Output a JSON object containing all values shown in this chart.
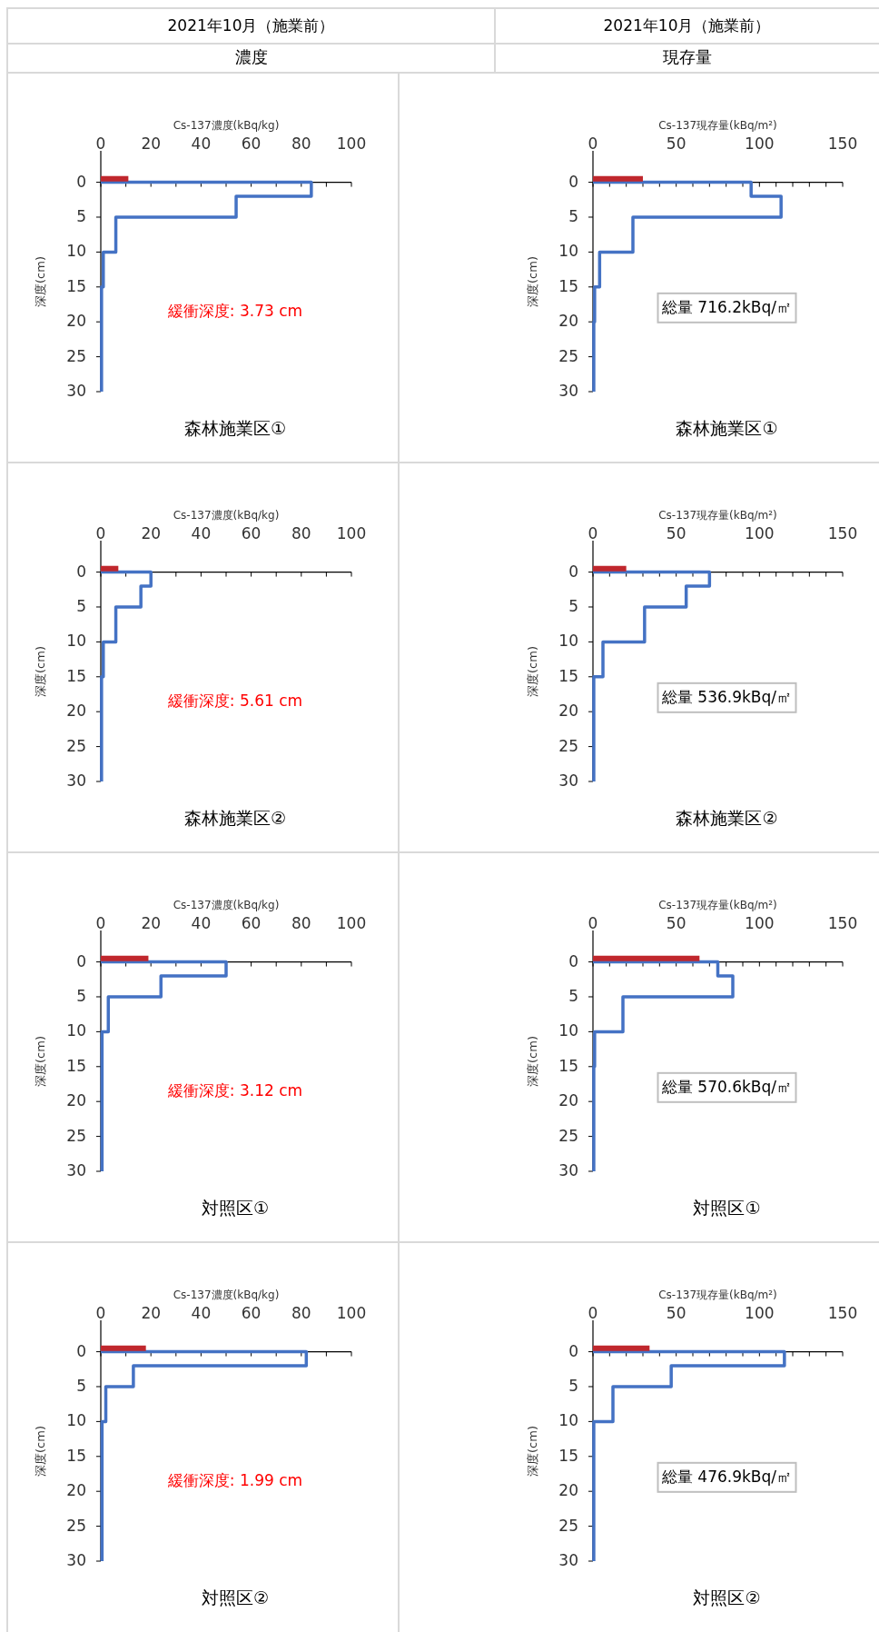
{
  "chart_data": [
    {
      "type": "line",
      "title": "2021年10月（施業前）",
      "subtitle": "濃度",
      "xlabel": "Cs-137濃度(kBq/kg)",
      "ylabel": "深度(cm)",
      "xlim": [
        0,
        100
      ],
      "xticks": [
        0,
        {
          "value": 10,
          "label": null
        },
        20,
        {
          "value": 30,
          "label": null
        },
        40,
        {
          "value": 50,
          "label": null
        },
        60,
        {
          "value": 70,
          "label": null
        },
        80,
        {
          "value": 90,
          "label": null
        },
        100
      ],
      "ylim": [
        30,
        -4.5
      ],
      "yticks": [
        0,
        5,
        10,
        15,
        20,
        25,
        30
      ],
      "grid": false,
      "marker": "none",
      "annotations": [
        "緩衝深度: 3.73 cm",
        "森林施業区①"
      ],
      "series": [
        {
          "color": "#c0272d",
          "x": [
            0,
            11
          ],
          "values": [
            -0.5,
            -0.5
          ]
        },
        {
          "color": "#4472c4",
          "x": [
            0,
            84,
            84,
            54,
            54,
            6,
            6,
            1,
            1,
            0.3,
            0.3
          ],
          "values": [
            0,
            0,
            2,
            2,
            5,
            5,
            10,
            10,
            15,
            15,
            30
          ]
        }
      ]
    },
    {
      "type": "line",
      "title": "2021年10月（施業前）",
      "subtitle": "現存量",
      "xlabel": "Cs-137現存量(kBq/m²)",
      "ylabel": "深度(cm)",
      "xlim": [
        0,
        150
      ],
      "xticks": [
        0,
        {
          "value": 10,
          "label": null
        },
        {
          "value": 20,
          "label": null
        },
        {
          "value": 30,
          "label": null
        },
        {
          "value": 40,
          "label": null
        },
        50,
        {
          "value": 60,
          "label": null
        },
        {
          "value": 70,
          "label": null
        },
        {
          "value": 80,
          "label": null
        },
        {
          "value": 90,
          "label": null
        },
        100,
        {
          "value": 110,
          "label": null
        },
        {
          "value": 120,
          "label": null
        },
        {
          "value": 130,
          "label": null
        },
        {
          "value": 140,
          "label": null
        },
        150
      ],
      "ylim": [
        30,
        -4.5
      ],
      "yticks": [
        0,
        5,
        10,
        15,
        20,
        25,
        30
      ],
      "grid": false,
      "marker": "none",
      "annotations": [
        "総量 716.2kBq/㎡",
        "森林施業区①"
      ],
      "series": [
        {
          "color": "#c0272d",
          "x": [
            0,
            30
          ],
          "values": [
            -0.5,
            -0.5
          ]
        },
        {
          "color": "#4472c4",
          "x": [
            0,
            95,
            95,
            113,
            113,
            24,
            24,
            4,
            4,
            1,
            1,
            0.5,
            0.5
          ],
          "values": [
            0,
            0,
            2,
            2,
            5,
            5,
            10,
            10,
            15,
            15,
            20,
            20,
            30
          ]
        }
      ]
    },
    {
      "type": "line",
      "xlabel": "Cs-137濃度(kBq/kg)",
      "ylabel": "深度(cm)",
      "xlim": [
        0,
        100
      ],
      "xticks": [
        0,
        {
          "value": 10,
          "label": null
        },
        20,
        {
          "value": 30,
          "label": null
        },
        40,
        {
          "value": 50,
          "label": null
        },
        60,
        {
          "value": 70,
          "label": null
        },
        80,
        {
          "value": 90,
          "label": null
        },
        100
      ],
      "ylim": [
        30,
        -4.5
      ],
      "yticks": [
        0,
        5,
        10,
        15,
        20,
        25,
        30
      ],
      "grid": false,
      "marker": "none",
      "annotations": [
        "緩衝深度: 5.61 cm",
        "森林施業区②"
      ],
      "series": [
        {
          "color": "#c0272d",
          "x": [
            0,
            7
          ],
          "values": [
            -0.5,
            -0.5
          ]
        },
        {
          "color": "#4472c4",
          "x": [
            0,
            20,
            20,
            16,
            16,
            6,
            6,
            1,
            1,
            0.3,
            0.3
          ],
          "values": [
            0,
            0,
            2,
            2,
            5,
            5,
            10,
            10,
            15,
            15,
            30
          ]
        }
      ]
    },
    {
      "type": "line",
      "xlabel": "Cs-137現存量(kBq/m²)",
      "ylabel": "深度(cm)",
      "xlim": [
        0,
        150
      ],
      "xticks": [
        0,
        {
          "value": 10,
          "label": null
        },
        {
          "value": 20,
          "label": null
        },
        {
          "value": 30,
          "label": null
        },
        {
          "value": 40,
          "label": null
        },
        50,
        {
          "value": 60,
          "label": null
        },
        {
          "value": 70,
          "label": null
        },
        {
          "value": 80,
          "label": null
        },
        {
          "value": 90,
          "label": null
        },
        100,
        {
          "value": 110,
          "label": null
        },
        {
          "value": 120,
          "label": null
        },
        {
          "value": 130,
          "label": null
        },
        {
          "value": 140,
          "label": null
        },
        150
      ],
      "ylim": [
        30,
        -4.5
      ],
      "yticks": [
        0,
        5,
        10,
        15,
        20,
        25,
        30
      ],
      "grid": false,
      "marker": "none",
      "annotations": [
        "総量 536.9kBq/㎡",
        "森林施業区②"
      ],
      "series": [
        {
          "color": "#c0272d",
          "x": [
            0,
            20
          ],
          "values": [
            -0.5,
            -0.5
          ]
        },
        {
          "color": "#4472c4",
          "x": [
            0,
            70,
            70,
            56,
            56,
            31,
            31,
            6,
            6,
            0.5,
            0.5
          ],
          "values": [
            0,
            0,
            2,
            2,
            5,
            5,
            10,
            10,
            15,
            15,
            30
          ]
        }
      ]
    },
    {
      "type": "line",
      "xlabel": "Cs-137濃度(kBq/kg)",
      "ylabel": "深度(cm)",
      "xlim": [
        0,
        100
      ],
      "xticks": [
        0,
        {
          "value": 10,
          "label": null
        },
        20,
        {
          "value": 30,
          "label": null
        },
        40,
        {
          "value": 50,
          "label": null
        },
        60,
        {
          "value": 70,
          "label": null
        },
        80,
        {
          "value": 90,
          "label": null
        },
        100
      ],
      "ylim": [
        30,
        -4.5
      ],
      "yticks": [
        0,
        5,
        10,
        15,
        20,
        25,
        30
      ],
      "grid": false,
      "marker": "none",
      "annotations": [
        "緩衝深度: 3.12 cm",
        "対照区①"
      ],
      "series": [
        {
          "color": "#c0272d",
          "x": [
            0,
            19
          ],
          "values": [
            -0.5,
            -0.5
          ]
        },
        {
          "color": "#4472c4",
          "x": [
            0,
            50,
            50,
            24,
            24,
            3,
            3,
            0.5,
            0.5
          ],
          "values": [
            0,
            0,
            2,
            2,
            5,
            5,
            10,
            10,
            30
          ]
        }
      ]
    },
    {
      "type": "line",
      "xlabel": "Cs-137現存量(kBq/m²)",
      "ylabel": "深度(cm)",
      "xlim": [
        0,
        150
      ],
      "xticks": [
        0,
        {
          "value": 10,
          "label": null
        },
        {
          "value": 20,
          "label": null
        },
        {
          "value": 30,
          "label": null
        },
        {
          "value": 40,
          "label": null
        },
        50,
        {
          "value": 60,
          "label": null
        },
        {
          "value": 70,
          "label": null
        },
        {
          "value": 80,
          "label": null
        },
        {
          "value": 90,
          "label": null
        },
        100,
        {
          "value": 110,
          "label": null
        },
        {
          "value": 120,
          "label": null
        },
        {
          "value": 130,
          "label": null
        },
        {
          "value": 140,
          "label": null
        },
        150
      ],
      "ylim": [
        30,
        -4.5
      ],
      "yticks": [
        0,
        5,
        10,
        15,
        20,
        25,
        30
      ],
      "grid": false,
      "marker": "none",
      "annotations": [
        "総量 570.6kBq/㎡",
        "対照区①"
      ],
      "series": [
        {
          "color": "#c0272d",
          "x": [
            0,
            64
          ],
          "values": [
            -0.5,
            -0.5
          ]
        },
        {
          "color": "#4472c4",
          "x": [
            0,
            75,
            75,
            84,
            84,
            18,
            18,
            1,
            1,
            0.5,
            0.5
          ],
          "values": [
            0,
            0,
            2,
            2,
            5,
            5,
            10,
            10,
            15,
            15,
            30
          ]
        }
      ]
    },
    {
      "type": "line",
      "xlabel": "Cs-137濃度(kBq/kg)",
      "ylabel": "深度(cm)",
      "xlim": [
        0,
        100
      ],
      "xticks": [
        0,
        {
          "value": 10,
          "label": null
        },
        20,
        {
          "value": 30,
          "label": null
        },
        40,
        {
          "value": 50,
          "label": null
        },
        60,
        {
          "value": 70,
          "label": null
        },
        80,
        {
          "value": 90,
          "label": null
        },
        100
      ],
      "ylim": [
        30,
        -4.5
      ],
      "yticks": [
        0,
        5,
        10,
        15,
        20,
        25,
        30
      ],
      "grid": false,
      "marker": "none",
      "annotations": [
        "緩衝深度: 1.99 cm",
        "対照区②"
      ],
      "series": [
        {
          "color": "#c0272d",
          "x": [
            0,
            18
          ],
          "values": [
            -0.5,
            -0.5
          ]
        },
        {
          "color": "#4472c4",
          "x": [
            0,
            82,
            82,
            13,
            13,
            2,
            2,
            0.5,
            0.5
          ],
          "values": [
            0,
            0,
            2,
            2,
            5,
            5,
            10,
            10,
            30
          ]
        }
      ]
    },
    {
      "type": "line",
      "xlabel": "Cs-137現存量(kBq/m²)",
      "ylabel": "深度(cm)",
      "xlim": [
        0,
        150
      ],
      "xticks": [
        0,
        {
          "value": 10,
          "label": null
        },
        {
          "value": 20,
          "label": null
        },
        {
          "value": 30,
          "label": null
        },
        {
          "value": 40,
          "label": null
        },
        50,
        {
          "value": 60,
          "label": null
        },
        {
          "value": 70,
          "label": null
        },
        {
          "value": 80,
          "label": null
        },
        {
          "value": 90,
          "label": null
        },
        100,
        {
          "value": 110,
          "label": null
        },
        {
          "value": 120,
          "label": null
        },
        {
          "value": 130,
          "label": null
        },
        {
          "value": 140,
          "label": null
        },
        150
      ],
      "ylim": [
        30,
        -4.5
      ],
      "yticks": [
        0,
        5,
        10,
        15,
        20,
        25,
        30
      ],
      "grid": false,
      "marker": "none",
      "annotations": [
        "総量 476.9kBq/㎡",
        "対照区②"
      ],
      "series": [
        {
          "color": "#c0272d",
          "x": [
            0,
            34
          ],
          "values": [
            -0.5,
            -0.5
          ]
        },
        {
          "color": "#4472c4",
          "x": [
            0,
            115,
            115,
            47,
            47,
            12,
            12,
            0.5,
            0.5
          ],
          "values": [
            0,
            0,
            2,
            2,
            5,
            5,
            10,
            10,
            30
          ]
        }
      ]
    }
  ]
}
